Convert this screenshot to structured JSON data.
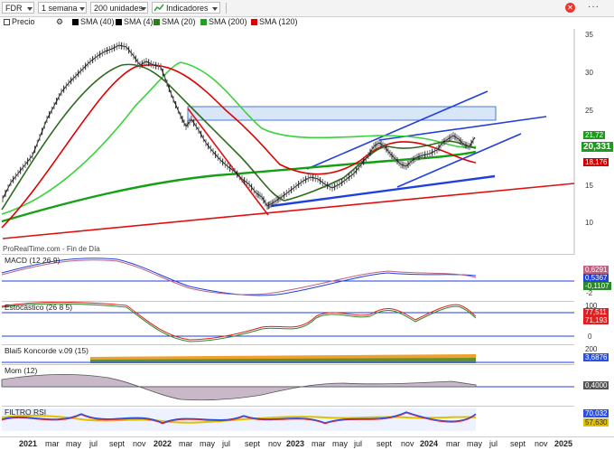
{
  "toolbar": {
    "symbol": "FDR",
    "period": "1 semana",
    "units": "200 unidades",
    "indicators": "Indicadores"
  },
  "legend": {
    "price": "Precio",
    "items": [
      {
        "label": "SMA (40)",
        "color": "#000000"
      },
      {
        "label": "SMA (4)",
        "color": "#000000"
      },
      {
        "label": "SMA (20)",
        "color": "#2e7d1e"
      },
      {
        "label": "SMA (200)",
        "color": "#1aa51a"
      },
      {
        "label": "SMA (120)",
        "color": "#e00000"
      }
    ]
  },
  "price_axis": {
    "ticks": [
      "35",
      "30",
      "25",
      "20",
      "15",
      "10"
    ],
    "tags": [
      {
        "text": "21,72",
        "color": "#1c9c1c"
      },
      {
        "text": "20,331",
        "color": "#1c9c1c"
      },
      {
        "text": "18,176",
        "color": "#d00000"
      }
    ]
  },
  "source_label": "ProRealTime.com - Fin de Día",
  "panels": {
    "macd": {
      "title": "MACD (12 26 9)",
      "ticks": [
        "2",
        "-2"
      ],
      "tags": [
        "0,6291",
        "0,5367",
        "-0,1107"
      ]
    },
    "stoch": {
      "title": "Estocástico (26 8 5)",
      "ticks": [
        "100",
        "0"
      ],
      "tags": [
        "77,511",
        "71,193"
      ]
    },
    "blai": {
      "title": "Blai5 Koncorde v.09 (15)",
      "ticks": [
        "200",
        "0"
      ],
      "tags": [
        "3,6876"
      ]
    },
    "mom": {
      "title": "Mom (12)",
      "tags": [
        "0,4000"
      ]
    },
    "rsi": {
      "title": "FILTRO RSI",
      "tags": [
        "70,032",
        "57,630"
      ]
    }
  },
  "time_axis": [
    "2021",
    "mar",
    "may",
    "jul",
    "sept",
    "nov",
    "2022",
    "mar",
    "may",
    "jul",
    "sept",
    "nov",
    "2023",
    "mar",
    "may",
    "jul",
    "sept",
    "nov",
    "2024",
    "mar",
    "may",
    "jul",
    "sept",
    "nov",
    "2025"
  ],
  "colors": {
    "accent_green": "#1c9c1c",
    "accent_red": "#d00000",
    "trend_blue": "#1f3fe0"
  }
}
